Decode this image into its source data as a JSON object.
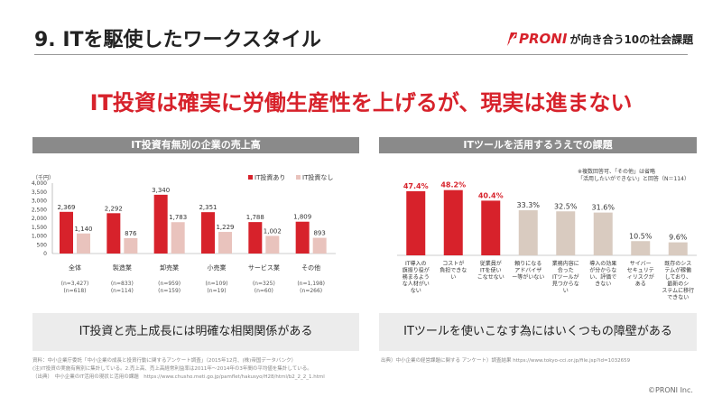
{
  "header": {
    "title": "9.  ITを駆使したワークスタイル",
    "brand_logo": "PRONI",
    "brand_tagline": "が向き合う10の社会課題"
  },
  "headline": "IT投資は確実に労働生産性を上げるが、現実は進まない",
  "colors": {
    "accent": "#d7222b",
    "secondary_left": "#e9c3bd",
    "secondary_right": "#d9cbc0",
    "panel_header": "#8a8a8a"
  },
  "left_panel": {
    "conclusion": "IT投資と売上成長には明確な相関関係がある",
    "source": [
      "資料：中小企業庁委託「中小企業の成長と投資行動に関するアンケート調査」（2015年12月、(株)帝国データバンク）",
      "(注)IT投資の実施有無別に集計している。2.売上高、売上高経常利益率は2011年～2014年の3年間の平均値を集計している。",
      "（出典）　中小企業のIT活用の現状と活用の課題　https://www.chusho.meti.go.jp/pamflet/hakusyo/H28/html/b2_2_2_1.html"
    ]
  },
  "right_panel": {
    "conclusion": "ITツールを使いこなす為にはいくつもの障壁がある",
    "source": "出典）中小企業の経営課題に関する アンケート）調査結果 https://www.tokyo-cci.or.jp/file.jsp?id=1032659"
  },
  "chart_data": [
    {
      "type": "bar",
      "title": "IT投資有無別の企業の売上高",
      "unit": "（千円）",
      "ylim": [
        0,
        4000
      ],
      "yticks": [
        "0",
        "500",
        "1,000",
        "1,500",
        "2,000",
        "2,500",
        "3,000",
        "3,500",
        "4,000"
      ],
      "categories": [
        "全体",
        "製造業",
        "卸売業",
        "小売業",
        "サービス業",
        "その他"
      ],
      "category_sublabels": [
        [
          "(n=3,427)",
          "(n=618)"
        ],
        [
          "(n=833)",
          "(n=114)"
        ],
        [
          "(n=959)",
          "(n=159)"
        ],
        [
          "(n=109)",
          "(n=19)"
        ],
        [
          "(n=325)",
          "(n=60)"
        ],
        [
          "(n=1,198)",
          "(n=266)"
        ]
      ],
      "series": [
        {
          "name": "IT投資あり",
          "values": [
            2369,
            2292,
            3340,
            2351,
            1788,
            1809
          ],
          "labels": [
            "2,369",
            "2,292",
            "3,340",
            "2,351",
            "1,788",
            "1,809"
          ]
        },
        {
          "name": "IT投資なし",
          "values": [
            1140,
            876,
            1783,
            1229,
            1002,
            893
          ],
          "labels": [
            "1,140",
            "876",
            "1,783",
            "1,229",
            "1,002",
            "893"
          ]
        }
      ],
      "legend_position": "top-right",
      "grid": false
    },
    {
      "type": "bar",
      "title": "ITツールを活用するうえでの課題",
      "note": [
        "※複数回答可、「その他」は省略",
        "「活用したいができない」と回答（N＝114）"
      ],
      "ylim": [
        0,
        60
      ],
      "categories": [
        "IT導入の旗振り役が務まるような人材がいない",
        "コストが負担できない",
        "従業員がITを使いこなせない",
        "頼りになるアドバイザー等がいない",
        "業務内容に合ったITツールが見つからない",
        "導入の効果が分からない、評価できない",
        "サイバーセキュリティリスクがある",
        "既存のシステムが稼働しており、最新のシステムに移行できない"
      ],
      "category_label_lines": [
        [
          "IT導入の",
          "旗振り役が",
          "務まるよう",
          "な人材がい",
          "ない"
        ],
        [
          "コストが",
          "負担できな",
          "い"
        ],
        [
          "従業員が",
          "ITを使い",
          "こなせない"
        ],
        [
          "頼りになる",
          "アドバイザ",
          "ー等がいない"
        ],
        [
          "業務内容に",
          "合った",
          "ITツールが",
          "見つからな",
          "い"
        ],
        [
          "導入の効果",
          "が分からな",
          "い、評価で",
          "きない"
        ],
        [
          "サイバー",
          "セキュリテ",
          "ィリスクが",
          "ある"
        ],
        [
          "既存のシス",
          "テムが稼働",
          "しており、",
          "最新のシ",
          "ステムに移行",
          "できない"
        ]
      ],
      "values": [
        47.4,
        48.2,
        40.4,
        33.3,
        32.5,
        31.6,
        10.5,
        9.6
      ],
      "labels": [
        "47.4%",
        "48.2%",
        "40.4%",
        "33.3%",
        "32.5%",
        "31.6%",
        "10.5%",
        "9.6%"
      ],
      "highlighted": [
        true,
        true,
        true,
        false,
        false,
        false,
        false,
        false
      ],
      "grid": false
    }
  ]
}
